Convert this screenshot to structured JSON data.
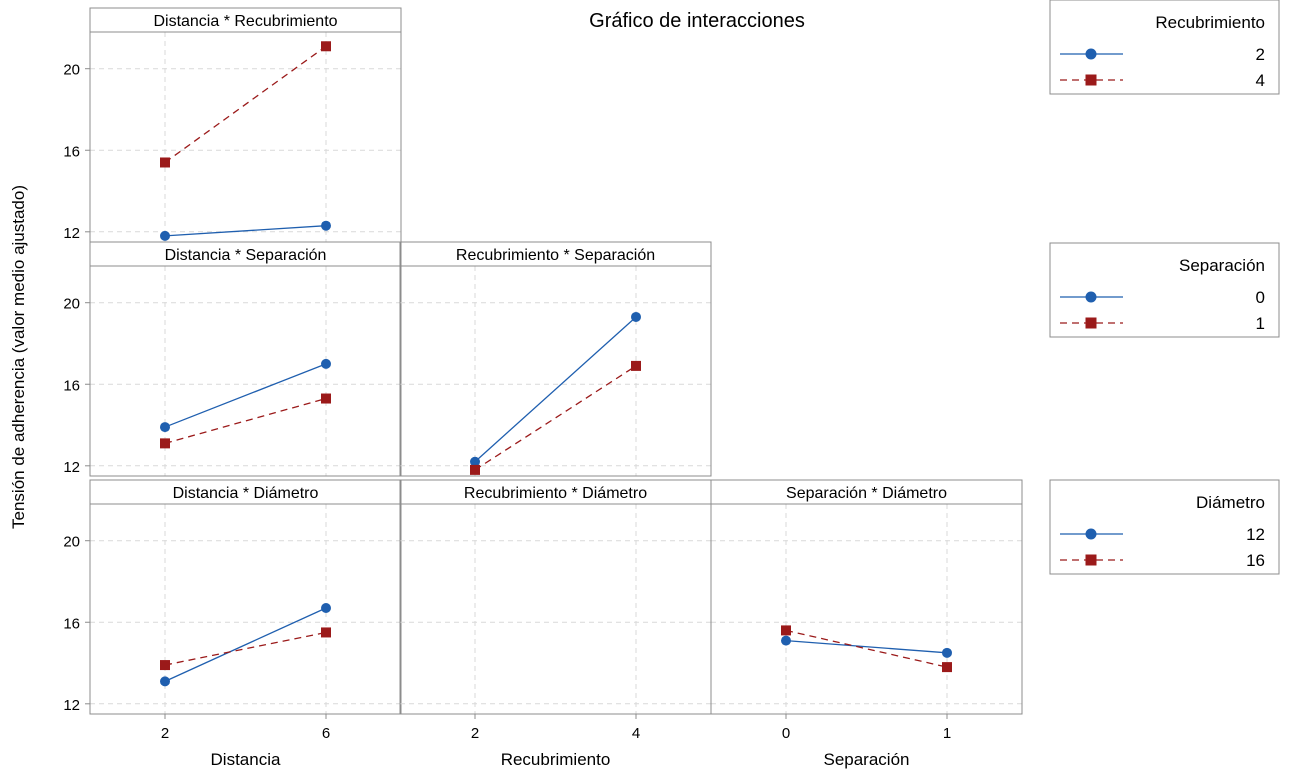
{
  "colors": {
    "series_a": "#1f5faf",
    "series_b": "#9b1a1a",
    "grid": "#d9d9d9",
    "frame": "#8c8c8c"
  },
  "chart_data": {
    "type": "line",
    "title": "Gráfico de interacciones",
    "ylabel": "Tensión de adherencia (valor medio ajustado)",
    "ylim": [
      11.5,
      21.8
    ],
    "yticks": [
      12,
      16,
      20
    ],
    "grid": true,
    "factors": [
      {
        "name": "Distancia",
        "levels": [
          "2",
          "6"
        ]
      },
      {
        "name": "Recubrimiento",
        "levels": [
          "2",
          "4"
        ]
      },
      {
        "name": "Separación",
        "levels": [
          "0",
          "1"
        ]
      }
    ],
    "legends": [
      {
        "title": "Recubrimiento",
        "levels": [
          "2",
          "4"
        ]
      },
      {
        "title": "Separación",
        "levels": [
          "0",
          "1"
        ]
      },
      {
        "title": "Diámetro",
        "levels": [
          "12",
          "16"
        ]
      }
    ],
    "panels": [
      {
        "row": 0,
        "col": 0,
        "title": "Distancia * Recubrimiento",
        "series": [
          {
            "values": [
              11.8,
              12.3
            ]
          },
          {
            "values": [
              15.4,
              21.1
            ]
          }
        ]
      },
      {
        "row": 1,
        "col": 0,
        "title": "Distancia * Separación",
        "series": [
          {
            "values": [
              13.9,
              17.0
            ]
          },
          {
            "values": [
              13.1,
              15.3
            ]
          }
        ]
      },
      {
        "row": 1,
        "col": 1,
        "title": "Recubrimiento * Separación",
        "series": [
          {
            "values": [
              12.2,
              19.3
            ]
          },
          {
            "values": [
              11.8,
              16.9
            ]
          }
        ]
      },
      {
        "row": 2,
        "col": 0,
        "title": "Distancia * Diámetro",
        "series": [
          {
            "values": [
              13.1,
              16.7
            ]
          },
          {
            "values": [
              13.9,
              15.5
            ]
          }
        ]
      },
      {
        "row": 2,
        "col": 1,
        "title": "Recubrimiento * Diámetro",
        "series": []
      },
      {
        "row": 2,
        "col": 2,
        "title": "Separación * Diámetro",
        "series": [
          {
            "values": [
              15.1,
              14.5
            ]
          },
          {
            "values": [
              15.6,
              13.8
            ]
          }
        ]
      }
    ]
  }
}
